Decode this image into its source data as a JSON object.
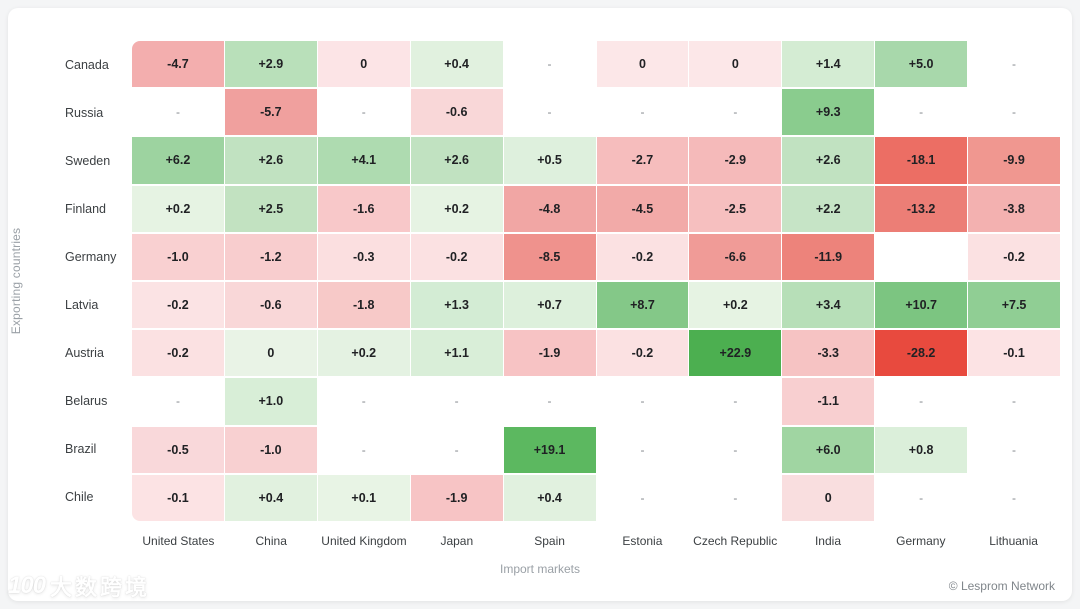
{
  "chart_data": {
    "type": "heatmap",
    "title": "",
    "xlabel": "Import markets",
    "ylabel": "Exporting countries",
    "legend": "none",
    "grid": "off",
    "columns": [
      "United States",
      "China",
      "United Kingdom",
      "Japan",
      "Spain",
      "Estonia",
      "Czech Republic",
      "India",
      "Germany",
      "Lithuania"
    ],
    "rows": [
      "Canada",
      "Russia",
      "Sweden",
      "Finland",
      "Germany",
      "Latvia",
      "Austria",
      "Belarus",
      "Brazil",
      "Chile"
    ],
    "values": [
      [
        "-4.7",
        "+2.9",
        "0",
        "+0.4",
        "-",
        "0",
        "0",
        "+1.4",
        "+5.0",
        "-"
      ],
      [
        "-",
        "-5.7",
        "-",
        "-0.6",
        "-",
        "-",
        "-",
        "+9.3",
        "-",
        "-"
      ],
      [
        "+6.2",
        "+2.6",
        "+4.1",
        "+2.6",
        "+0.5",
        "-2.7",
        "-2.9",
        "+2.6",
        "-18.1",
        "-9.9"
      ],
      [
        "+0.2",
        "+2.5",
        "-1.6",
        "+0.2",
        "-4.8",
        "-4.5",
        "-2.5",
        "+2.2",
        "-13.2",
        "-3.8"
      ],
      [
        "-1.0",
        "-1.2",
        "-0.3",
        "-0.2",
        "-8.5",
        "-0.2",
        "-6.6",
        "-11.9",
        "",
        "-0.2"
      ],
      [
        "-0.2",
        "-0.6",
        "-1.8",
        "+1.3",
        "+0.7",
        "+8.7",
        "+0.2",
        "+3.4",
        "+10.7",
        "+7.5"
      ],
      [
        "-0.2",
        "0",
        "+0.2",
        "+1.1",
        "-1.9",
        "-0.2",
        "+22.9",
        "-3.3",
        "-28.2",
        "-0.1"
      ],
      [
        "-",
        "+1.0",
        "-",
        "-",
        "-",
        "-",
        "-",
        "-1.1",
        "-",
        "-"
      ],
      [
        "-0.5",
        "-1.0",
        "-",
        "-",
        "+19.1",
        "-",
        "-",
        "+6.0",
        "+0.8",
        "-"
      ],
      [
        "-0.1",
        "+0.4",
        "+0.1",
        "-1.9",
        "+0.4",
        "-",
        "-",
        "0",
        "-",
        "-"
      ]
    ],
    "cell_colors": [
      [
        "#f3aeae",
        "#b9e0ba",
        "#fce4e6",
        "#e1f1df",
        "#ffffff",
        "#fce7e8",
        "#fce7e8",
        "#d4ecd3",
        "#a8d8ab",
        "#ffffff"
      ],
      [
        "#ffffff",
        "#f0a09e",
        "#ffffff",
        "#f9d7d8",
        "#ffffff",
        "#ffffff",
        "#ffffff",
        "#8acc8e",
        "#ffffff",
        "#ffffff"
      ],
      [
        "#9dd3a0",
        "#c1e2c1",
        "#aedbb0",
        "#c1e2c1",
        "#def0dd",
        "#f6bdbd",
        "#f5baba",
        "#c1e2c1",
        "#ec6e64",
        "#f09790"
      ],
      [
        "#e6f3e3",
        "#c2e2c1",
        "#f8c8c9",
        "#e6f3e3",
        "#f1a6a4",
        "#f2aaa8",
        "#f6bfbf",
        "#c6e4c6",
        "#ec7e76",
        "#f3b1b0"
      ],
      [
        "#f9d0d1",
        "#f8cdce",
        "#fbdfe0",
        "#fbe1e2",
        "#ef928d",
        "#fbe1e2",
        "#f09b97",
        "#ed837b",
        "#ffffff",
        "#fbe1e2"
      ],
      [
        "#fbe3e4",
        "#f9d7d8",
        "#f7c9c8",
        "#d3ecd4",
        "#ddf0dc",
        "#84c888",
        "#e6f3e3",
        "#b7dfb8",
        "#7cc581",
        "#90ce94"
      ],
      [
        "#fbe1e2",
        "#e9f3e6",
        "#e4f2e2",
        "#d9eed8",
        "#f7c3c4",
        "#fbe1e2",
        "#4caf50",
        "#f6c3c3",
        "#e84a3e",
        "#fce3e4"
      ],
      [
        "#ffffff",
        "#d8eed7",
        "#ffffff",
        "#ffffff",
        "#ffffff",
        "#ffffff",
        "#ffffff",
        "#f8cfd0",
        "#ffffff",
        "#ffffff"
      ],
      [
        "#f9d8da",
        "#f8d0d1",
        "#ffffff",
        "#ffffff",
        "#5cb860",
        "#ffffff",
        "#ffffff",
        "#a0d5a2",
        "#dbefda",
        "#ffffff"
      ],
      [
        "#fce3e4",
        "#e1f1df",
        "#e8f4e5",
        "#f7c4c5",
        "#e1f1df",
        "#ffffff",
        "#ffffff",
        "#f9dedf",
        "#ffffff",
        "#ffffff"
      ]
    ]
  },
  "colors": {
    "positive_strong": "#4caf50",
    "negative_strong": "#e84a3e",
    "empty_cell": "#ffffff",
    "label_text": "#3c4043",
    "axis_title_text": "#9aa0a6"
  },
  "footer": {
    "credit": "© Lesprom Network",
    "watermark_logo": "100",
    "watermark_text": "大数跨境"
  }
}
